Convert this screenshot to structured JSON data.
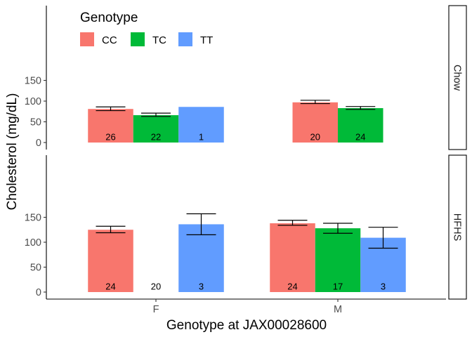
{
  "chart_data": {
    "type": "bar",
    "x_categories": [
      "F",
      "M"
    ],
    "xlabel": "Genotype at  JAX00028600",
    "ylabel": "Cholesterol (mg/dL)",
    "yticks": [
      0,
      50,
      100,
      150
    ],
    "ylim_top_panel": [
      0,
      160
    ],
    "ylim_bottom_panel": [
      0,
      160
    ],
    "legend": {
      "title": "Genotype",
      "position": "top-left",
      "entries": [
        {
          "name": "CC",
          "color": "#F8766D"
        },
        {
          "name": "TC",
          "color": "#00BA38"
        },
        {
          "name": "TT",
          "color": "#619CFF"
        }
      ]
    },
    "panels": [
      {
        "label": "Chow",
        "bars": [
          {
            "x": "F",
            "genotype": "CC",
            "mean": 81,
            "err_low": 77,
            "err_high": 86,
            "count": "26"
          },
          {
            "x": "F",
            "genotype": "TC",
            "mean": 66,
            "err_low": 63,
            "err_high": 71,
            "count": "22"
          },
          {
            "x": "F",
            "genotype": "TT",
            "mean": 86,
            "err_low": null,
            "err_high": null,
            "count": "1"
          },
          {
            "x": "M",
            "genotype": "CC",
            "mean": 97,
            "err_low": 94,
            "err_high": 102,
            "count": "20"
          },
          {
            "x": "M",
            "genotype": "TC",
            "mean": 83,
            "err_low": 80,
            "err_high": 87,
            "count": "24"
          }
        ]
      },
      {
        "label": "HFHS",
        "bars": [
          {
            "x": "F",
            "genotype": "CC",
            "mean": 125,
            "err_low": 119,
            "err_high": 132,
            "count": "24"
          },
          {
            "x": "F",
            "genotype": "TC",
            "mean": 0,
            "err_low": null,
            "err_high": null,
            "count": "20"
          },
          {
            "x": "F",
            "genotype": "TT",
            "mean": 136,
            "err_low": 115,
            "err_high": 157,
            "count": "3"
          },
          {
            "x": "M",
            "genotype": "CC",
            "mean": 138,
            "err_low": 134,
            "err_high": 144,
            "count": "24"
          },
          {
            "x": "M",
            "genotype": "TC",
            "mean": 128,
            "err_low": 118,
            "err_high": 138,
            "count": "17"
          },
          {
            "x": "M",
            "genotype": "TT",
            "mean": 109,
            "err_low": 88,
            "err_high": 130,
            "count": "3"
          }
        ]
      }
    ]
  }
}
